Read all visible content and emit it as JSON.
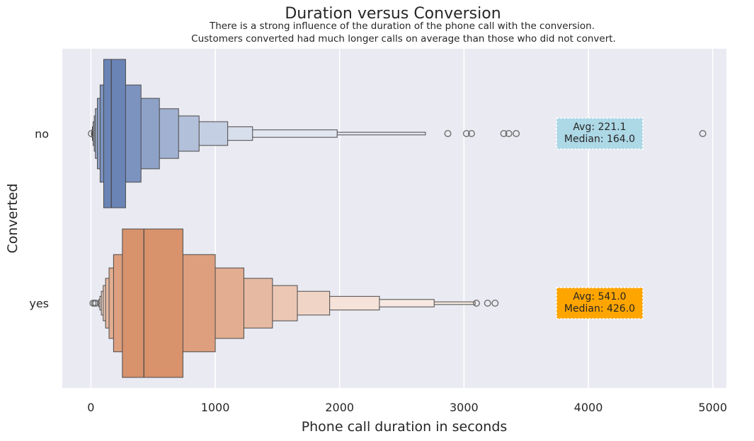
{
  "chart_data": {
    "type": "boxenplot",
    "orientation": "horizontal",
    "title": "Duration versus Conversion",
    "subtitle_lines": [
      "There is a strong influence of the duration of the phone call with the conversion.",
      "Customers converted had much longer calls on average than those who did not convert."
    ],
    "xlabel": "Phone call duration in seconds",
    "ylabel": "Converted",
    "xlim": [
      -230,
      5110
    ],
    "x_ticks": [
      0,
      1000,
      2000,
      3000,
      4000,
      5000
    ],
    "x_tick_labels": [
      "0",
      "1000",
      "2000",
      "3000",
      "4000",
      "5000"
    ],
    "grid": true,
    "categories": [
      "no",
      "yes"
    ],
    "series": [
      {
        "category": "no",
        "color": "#5976ae",
        "median": 164.0,
        "mean": 221.1,
        "levels": [
          [
            103,
            279
          ],
          [
            74,
            403
          ],
          [
            52,
            551
          ],
          [
            36,
            705
          ],
          [
            27,
            870
          ],
          [
            18,
            1100
          ],
          [
            12,
            1300
          ],
          [
            7,
            1980
          ],
          [
            4,
            2690
          ]
        ],
        "outliers": [
          4,
          2870,
          3020,
          3060,
          3320,
          3360,
          3420,
          4920
        ],
        "annotation": {
          "lines": [
            "Avg: 221.1",
            "Median: 164.0"
          ],
          "bg_color": "#add8e6"
        }
      },
      {
        "category": "yes",
        "color": "#d4865c",
        "median": 426.0,
        "mean": 541.0,
        "levels": [
          [
            253,
            740
          ],
          [
            182,
            1000
          ],
          [
            146,
            1230
          ],
          [
            118,
            1460
          ],
          [
            99,
            1660
          ],
          [
            84,
            1920
          ],
          [
            72,
            2320
          ],
          [
            63,
            2760
          ],
          [
            56,
            3090
          ]
        ],
        "outliers": [
          17,
          30,
          40,
          3100,
          3190,
          3250
        ],
        "annotation": {
          "lines": [
            "Avg: 541.0",
            "Median: 426.0"
          ],
          "bg_color": "#ffa500"
        }
      }
    ]
  }
}
